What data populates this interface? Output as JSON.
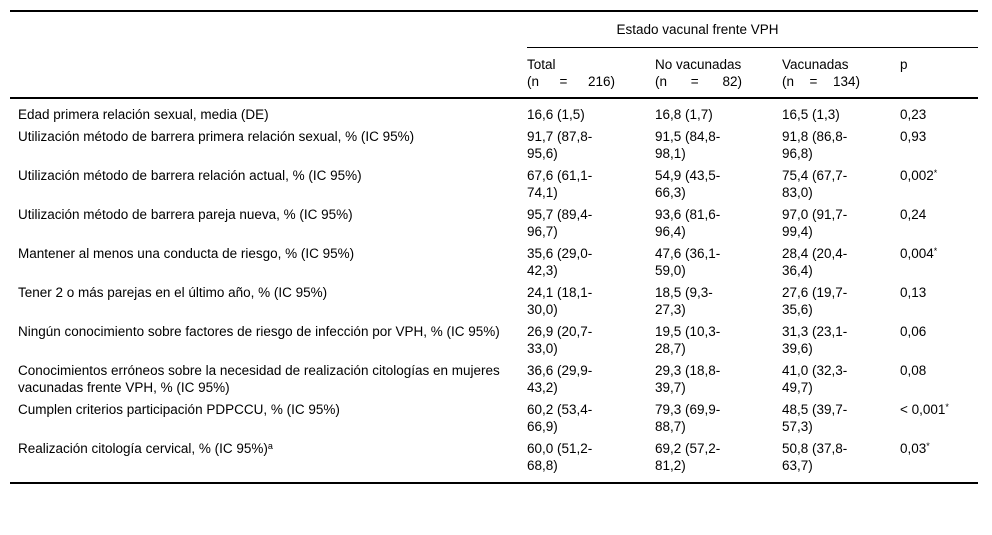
{
  "table": {
    "group_header": "Estado vacunal frente VPH",
    "col_headers": [
      {
        "label": "Total",
        "n": "(n = 216)"
      },
      {
        "label": "No vacunadas",
        "n": "(n = 82)"
      },
      {
        "label": "Vacunadas",
        "n": "(n = 134)"
      },
      {
        "label": "p",
        "n": ""
      }
    ],
    "rows": [
      {
        "label": "Edad primera relación sexual, media (DE)",
        "label_sup": "",
        "total": "16,6 (1,5)",
        "no_vacunadas": "16,8 (1,7)",
        "vacunadas": "16,5 (1,3)",
        "p": "0,23",
        "p_sup": ""
      },
      {
        "label": "Utilización método de barrera primera relación sexual, % (IC 95%)",
        "label_sup": "",
        "total": "91,7 (87,8-95,6)",
        "no_vacunadas": "91,5 (84,8-98,1)",
        "vacunadas": "91,8 (86,8-96,8)",
        "p": "0,93",
        "p_sup": ""
      },
      {
        "label": "Utilización método de barrera relación actual, % (IC 95%)",
        "label_sup": "",
        "total": "67,6 (61,1-74,1)",
        "no_vacunadas": "54,9 (43,5-66,3)",
        "vacunadas": "75,4 (67,7-83,0)",
        "p": "0,002",
        "p_sup": "*"
      },
      {
        "label": "Utilización método de barrera pareja nueva, % (IC 95%)",
        "label_sup": "",
        "total": "95,7 (89,4-96,7)",
        "no_vacunadas": "93,6 (81,6-96,4)",
        "vacunadas": "97,0 (91,7-99,4)",
        "p": "0,24",
        "p_sup": ""
      },
      {
        "label": "Mantener al menos una conducta de riesgo, % (IC 95%)",
        "label_sup": "",
        "total": "35,6 (29,0-42,3)",
        "no_vacunadas": "47,6 (36,1-59,0)",
        "vacunadas": "28,4 (20,4-36,4)",
        "p": "0,004",
        "p_sup": "*"
      },
      {
        "label": "Tener 2 o más parejas en el último año, % (IC 95%)",
        "label_sup": "",
        "total": "24,1 (18,1-30,0)",
        "no_vacunadas": "18,5 (9,3-27,3)",
        "vacunadas": "27,6 (19,7-35,6)",
        "p": "0,13",
        "p_sup": ""
      },
      {
        "label": "Ningún conocimiento sobre factores de riesgo de infección por VPH, % (IC 95%)",
        "label_sup": "",
        "total": "26,9 (20,7-33,0)",
        "no_vacunadas": "19,5 (10,3-28,7)",
        "vacunadas": "31,3 (23,1-39,6)",
        "p": "0,06",
        "p_sup": ""
      },
      {
        "label": "Conocimientos erróneos sobre la necesidad de realización citologías en mujeres vacunadas frente VPH, % (IC 95%)",
        "label_sup": "",
        "total": "36,6 (29,9-43,2)",
        "no_vacunadas": "29,3 (18,8-39,7)",
        "vacunadas": "41,0 (32,3-49,7)",
        "p": "0,08",
        "p_sup": ""
      },
      {
        "label": "Cumplen criterios participación PDPCCU, % (IC 95%)",
        "label_sup": "",
        "total": "60,2 (53,4-66,9)",
        "no_vacunadas": "79,3 (69,9-88,7)",
        "vacunadas": "48,5 (39,7-57,3)",
        "p": "< 0,001",
        "p_sup": "*"
      },
      {
        "label": "Realización citología cervical, % (IC 95%)",
        "label_sup": "a",
        "total": "60,0 (51,2-68,8)",
        "no_vacunadas": "69,2 (57,2-81,2)",
        "vacunadas": "50,8 (37,8-63,7)",
        "p": "0,03",
        "p_sup": "*"
      }
    ]
  }
}
